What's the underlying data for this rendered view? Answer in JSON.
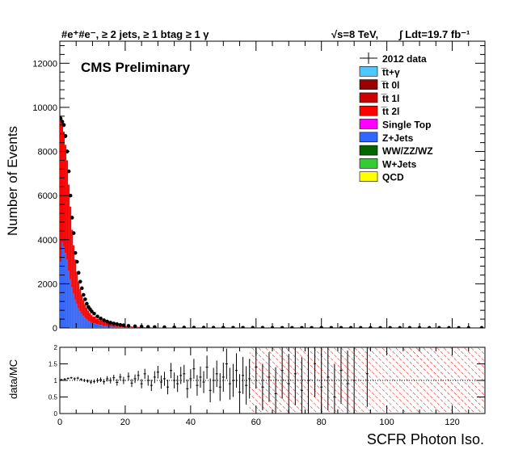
{
  "chart_data": [
    {
      "type": "bar",
      "subtype": "stacked-histogram-with-data-points",
      "title": "#e⁺#e⁻, ≥ 2 jets, ≥ 1 btag ≥ 1 γ",
      "energy_label": "√s=8 TeV,",
      "lumi_label": "∫ Ldt=19.7 fb⁻¹",
      "label": "CMS Preliminary",
      "xlabel": "SCFR Photon Iso.",
      "ylabel": "Number of Events",
      "xlim": [
        0,
        130
      ],
      "ylim": [
        0,
        13000
      ],
      "x_ticks": [
        0,
        20,
        40,
        60,
        80,
        100,
        120
      ],
      "y_ticks": [
        0,
        2000,
        4000,
        6000,
        8000,
        10000,
        12000
      ],
      "x_tick_labels": [
        "0",
        "20",
        "40",
        "60",
        "80",
        "100",
        "120"
      ],
      "y_tick_labels": [
        "0",
        "2000",
        "4000",
        "6000",
        "8000",
        "10000",
        "12000"
      ],
      "legend_position": "top-right",
      "legend": [
        {
          "name": "2012 data",
          "color": "#000000",
          "style": "marker"
        },
        {
          "name": "t̅t+γ",
          "color": "#4dc8ff"
        },
        {
          "name": "t̅t 0l",
          "color": "#990000"
        },
        {
          "name": "t̅t 1l",
          "color": "#cc0000"
        },
        {
          "name": "t̅t 2l",
          "color": "#ff0000"
        },
        {
          "name": "Single Top",
          "color": "#ff00ff"
        },
        {
          "name": "Z+Jets",
          "color": "#3366ff"
        },
        {
          "name": "WW/ZZ/WZ",
          "color": "#006600"
        },
        {
          "name": "W+Jets",
          "color": "#33cc33"
        },
        {
          "name": "QCD",
          "color": "#ffff00"
        }
      ],
      "bin_width": 0.5,
      "bins_x": [
        0,
        0.5,
        1,
        1.5,
        2,
        2.5,
        3,
        3.5,
        4,
        4.5,
        5,
        5.5,
        6,
        6.5,
        7,
        7.5,
        8,
        8.5,
        9,
        9.5,
        10,
        11,
        12,
        13,
        14,
        15,
        16,
        17,
        18,
        19,
        20,
        22,
        24,
        26,
        28,
        30,
        35,
        40,
        50,
        60
      ],
      "series": [
        {
          "name": "Z+Jets",
          "color": "#3366ff",
          "values": [
            3000,
            3900,
            3700,
            3400,
            3100,
            2600,
            2200,
            1850,
            1550,
            1300,
            1100,
            900,
            760,
            640,
            540,
            460,
            390,
            330,
            280,
            240,
            210,
            170,
            140,
            110,
            90,
            70,
            55,
            45,
            35,
            28,
            22,
            16,
            12,
            9,
            7,
            5,
            3,
            2,
            1,
            0
          ]
        },
        {
          "name": "t̅t 2l",
          "color": "#ff0000",
          "values": [
            6600,
            5400,
            5200,
            4900,
            4500,
            3900,
            3300,
            2600,
            2200,
            1800,
            1450,
            1200,
            1000,
            860,
            720,
            610,
            520,
            450,
            390,
            340,
            300,
            250,
            210,
            180,
            150,
            120,
            100,
            85,
            70,
            58,
            48,
            36,
            27,
            20,
            15,
            11,
            6,
            4,
            2,
            1
          ]
        }
      ],
      "data_points": [
        {
          "x": 0.25,
          "y": 9500
        },
        {
          "x": 0.75,
          "y": 9350
        },
        {
          "x": 1.25,
          "y": 9200
        },
        {
          "x": 1.75,
          "y": 8700
        },
        {
          "x": 2.25,
          "y": 8000
        },
        {
          "x": 2.75,
          "y": 7100
        },
        {
          "x": 3.25,
          "y": 6000
        },
        {
          "x": 3.75,
          "y": 5000
        },
        {
          "x": 4.25,
          "y": 4300
        },
        {
          "x": 4.75,
          "y": 3400
        },
        {
          "x": 5.25,
          "y": 3000
        },
        {
          "x": 5.75,
          "y": 2500
        },
        {
          "x": 6.25,
          "y": 2100
        },
        {
          "x": 6.75,
          "y": 1800
        },
        {
          "x": 7.25,
          "y": 1500
        },
        {
          "x": 7.75,
          "y": 1300
        },
        {
          "x": 8.25,
          "y": 1100
        },
        {
          "x": 8.75,
          "y": 950
        },
        {
          "x": 9.25,
          "y": 850
        },
        {
          "x": 9.75,
          "y": 750
        },
        {
          "x": 10.5,
          "y": 650
        },
        {
          "x": 11.5,
          "y": 520
        },
        {
          "x": 12.5,
          "y": 430
        },
        {
          "x": 13.5,
          "y": 350
        },
        {
          "x": 14.5,
          "y": 290
        },
        {
          "x": 15.5,
          "y": 240
        },
        {
          "x": 16.5,
          "y": 200
        },
        {
          "x": 17.5,
          "y": 170
        },
        {
          "x": 18.5,
          "y": 140
        },
        {
          "x": 19.5,
          "y": 120
        },
        {
          "x": 21,
          "y": 95
        },
        {
          "x": 23,
          "y": 75
        },
        {
          "x": 25,
          "y": 60
        },
        {
          "x": 27,
          "y": 48
        },
        {
          "x": 29,
          "y": 40
        },
        {
          "x": 32,
          "y": 30
        },
        {
          "x": 35,
          "y": 22
        },
        {
          "x": 38,
          "y": 18
        },
        {
          "x": 41,
          "y": 14
        },
        {
          "x": 44,
          "y": 12
        },
        {
          "x": 47,
          "y": 10
        },
        {
          "x": 50,
          "y": 9
        },
        {
          "x": 53,
          "y": 8
        },
        {
          "x": 56,
          "y": 7
        },
        {
          "x": 59,
          "y": 6
        },
        {
          "x": 62,
          "y": 6
        },
        {
          "x": 65,
          "y": 5
        },
        {
          "x": 68,
          "y": 5
        },
        {
          "x": 71,
          "y": 4
        },
        {
          "x": 74,
          "y": 4
        },
        {
          "x": 77,
          "y": 4
        },
        {
          "x": 80,
          "y": 3
        },
        {
          "x": 83,
          "y": 3
        },
        {
          "x": 86,
          "y": 3
        },
        {
          "x": 89,
          "y": 2
        },
        {
          "x": 92,
          "y": 2
        },
        {
          "x": 95,
          "y": 2
        },
        {
          "x": 98,
          "y": 2
        },
        {
          "x": 101,
          "y": 2
        },
        {
          "x": 104,
          "y": 1
        },
        {
          "x": 107,
          "y": 1
        },
        {
          "x": 110,
          "y": 1
        },
        {
          "x": 113,
          "y": 1
        },
        {
          "x": 116,
          "y": 1
        },
        {
          "x": 119,
          "y": 1
        },
        {
          "x": 122,
          "y": 1
        },
        {
          "x": 125,
          "y": 1
        },
        {
          "x": 129,
          "y": 1
        }
      ]
    },
    {
      "type": "scatter",
      "subtype": "ratio-panel",
      "xlabel": "SCFR Photon Iso.",
      "ylabel": "data/MC",
      "xlim": [
        0,
        130
      ],
      "ylim": [
        0,
        2
      ],
      "x_ticks": [
        0,
        20,
        40,
        60,
        80,
        100,
        120
      ],
      "x_tick_labels": [
        "0",
        "20",
        "40",
        "60",
        "80",
        "100",
        "120"
      ],
      "y_ticks": [
        0,
        0.5,
        1,
        1.5,
        2
      ],
      "y_tick_labels": [
        "0",
        "0.5",
        "1",
        "1.5",
        "2"
      ],
      "reference_line": 1,
      "uncertainty_band_start_x": 58,
      "uncertainty_band_color": "#ff0000",
      "ratio_points": [
        {
          "x": 0.5,
          "y": 1.02,
          "err": 0.03
        },
        {
          "x": 1.5,
          "y": 1.04,
          "err": 0.03
        },
        {
          "x": 2.5,
          "y": 1.06,
          "err": 0.03
        },
        {
          "x": 3.5,
          "y": 1.08,
          "err": 0.03
        },
        {
          "x": 4.5,
          "y": 1.05,
          "err": 0.04
        },
        {
          "x": 5.5,
          "y": 1.07,
          "err": 0.04
        },
        {
          "x": 6.5,
          "y": 1.03,
          "err": 0.04
        },
        {
          "x": 7.5,
          "y": 1.0,
          "err": 0.05
        },
        {
          "x": 8.5,
          "y": 0.98,
          "err": 0.05
        },
        {
          "x": 9.5,
          "y": 0.95,
          "err": 0.06
        },
        {
          "x": 10.5,
          "y": 0.97,
          "err": 0.06
        },
        {
          "x": 11.5,
          "y": 1.0,
          "err": 0.07
        },
        {
          "x": 12.5,
          "y": 1.02,
          "err": 0.07
        },
        {
          "x": 13.5,
          "y": 0.96,
          "err": 0.08
        },
        {
          "x": 14.5,
          "y": 1.05,
          "err": 0.08
        },
        {
          "x": 15.5,
          "y": 1.0,
          "err": 0.09
        },
        {
          "x": 16.5,
          "y": 1.08,
          "err": 0.09
        },
        {
          "x": 17.5,
          "y": 0.94,
          "err": 0.1
        },
        {
          "x": 18.5,
          "y": 1.1,
          "err": 0.1
        },
        {
          "x": 19.5,
          "y": 1.0,
          "err": 0.11
        },
        {
          "x": 21,
          "y": 1.12,
          "err": 0.12
        },
        {
          "x": 22,
          "y": 0.92,
          "err": 0.12
        },
        {
          "x": 23,
          "y": 1.05,
          "err": 0.13
        },
        {
          "x": 24,
          "y": 1.15,
          "err": 0.14
        },
        {
          "x": 25,
          "y": 0.9,
          "err": 0.14
        },
        {
          "x": 26,
          "y": 1.2,
          "err": 0.15
        },
        {
          "x": 27,
          "y": 1.0,
          "err": 0.16
        },
        {
          "x": 28,
          "y": 0.85,
          "err": 0.17
        },
        {
          "x": 29,
          "y": 1.1,
          "err": 0.18
        },
        {
          "x": 30,
          "y": 1.25,
          "err": 0.19
        },
        {
          "x": 31,
          "y": 0.95,
          "err": 0.2
        },
        {
          "x": 32,
          "y": 1.05,
          "err": 0.21
        },
        {
          "x": 33,
          "y": 0.8,
          "err": 0.22
        },
        {
          "x": 34,
          "y": 1.3,
          "err": 0.23
        },
        {
          "x": 35,
          "y": 1.0,
          "err": 0.24
        },
        {
          "x": 36,
          "y": 0.9,
          "err": 0.25
        },
        {
          "x": 37,
          "y": 1.15,
          "err": 0.26
        },
        {
          "x": 38,
          "y": 1.2,
          "err": 0.27
        },
        {
          "x": 39,
          "y": 0.75,
          "err": 0.28
        },
        {
          "x": 40,
          "y": 1.05,
          "err": 0.29
        },
        {
          "x": 41,
          "y": 1.35,
          "err": 0.3
        },
        {
          "x": 42,
          "y": 0.85,
          "err": 0.31
        },
        {
          "x": 43,
          "y": 1.1,
          "err": 0.32
        },
        {
          "x": 44,
          "y": 0.95,
          "err": 0.33
        },
        {
          "x": 45,
          "y": 1.4,
          "err": 0.35
        },
        {
          "x": 46,
          "y": 0.7,
          "err": 0.36
        },
        {
          "x": 47,
          "y": 1.0,
          "err": 0.38
        },
        {
          "x": 48,
          "y": 1.2,
          "err": 0.4
        },
        {
          "x": 49,
          "y": 0.8,
          "err": 0.42
        },
        {
          "x": 50,
          "y": 1.1,
          "err": 0.44
        },
        {
          "x": 51,
          "y": 1.5,
          "err": 0.46
        },
        {
          "x": 52,
          "y": 0.9,
          "err": 0.48
        },
        {
          "x": 53,
          "y": 1.0,
          "err": 0.5
        },
        {
          "x": 54,
          "y": 1.3,
          "err": 0.52
        },
        {
          "x": 55,
          "y": 0.65,
          "err": 0.54
        },
        {
          "x": 56,
          "y": 1.15,
          "err": 0.56
        },
        {
          "x": 57,
          "y": 0.85,
          "err": 0.58
        },
        {
          "x": 58,
          "y": 1.05,
          "err": 0.6
        },
        {
          "x": 60,
          "y": 1.4,
          "err": 0.65
        },
        {
          "x": 62,
          "y": 0.8,
          "err": 0.7
        },
        {
          "x": 64,
          "y": 1.1,
          "err": 0.75
        },
        {
          "x": 66,
          "y": 0.6,
          "err": 0.8
        },
        {
          "x": 68,
          "y": 1.3,
          "err": 0.85
        },
        {
          "x": 70,
          "y": 0.9,
          "err": 0.9
        },
        {
          "x": 72,
          "y": 1.2,
          "err": 0.95
        },
        {
          "x": 74,
          "y": 0.7,
          "err": 1.0
        },
        {
          "x": 76,
          "y": 1.0,
          "err": 1.0
        },
        {
          "x": 78,
          "y": 1.5,
          "err": 1.0
        },
        {
          "x": 80,
          "y": 0.8,
          "err": 1.0
        },
        {
          "x": 82,
          "y": 1.1,
          "err": 1.0
        },
        {
          "x": 84,
          "y": 0.5,
          "err": 1.0
        },
        {
          "x": 86,
          "y": 1.3,
          "err": 1.0
        },
        {
          "x": 88,
          "y": 0.9,
          "err": 1.0
        },
        {
          "x": 90,
          "y": 1.0,
          "err": 1.0
        },
        {
          "x": 94,
          "y": 1.2,
          "err": 1.0
        }
      ]
    }
  ]
}
